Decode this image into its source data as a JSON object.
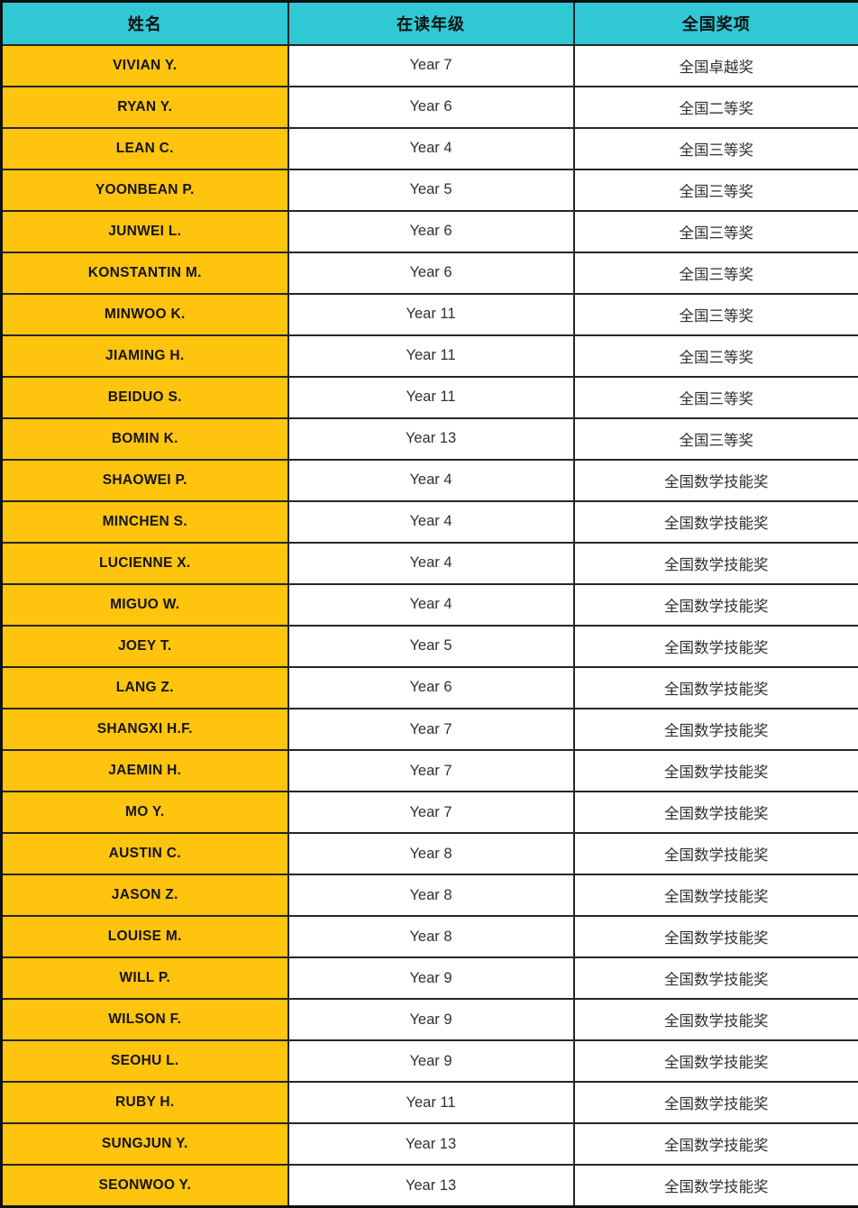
{
  "table": {
    "columns": [
      {
        "key": "name",
        "label": "姓名"
      },
      {
        "key": "grade",
        "label": "在读年级"
      },
      {
        "key": "award",
        "label": "全国奖项"
      }
    ],
    "rows": [
      {
        "name": "VIVIAN Y.",
        "grade": "Year 7",
        "award": "全国卓越奖"
      },
      {
        "name": "RYAN Y.",
        "grade": "Year 6",
        "award": "全国二等奖"
      },
      {
        "name": "LEAN C.",
        "grade": "Year 4",
        "award": "全国三等奖"
      },
      {
        "name": "YOONBEAN P.",
        "grade": "Year 5",
        "award": "全国三等奖"
      },
      {
        "name": "JUNWEI L.",
        "grade": "Year 6",
        "award": "全国三等奖"
      },
      {
        "name": "KONSTANTIN M.",
        "grade": "Year 6",
        "award": "全国三等奖"
      },
      {
        "name": "MINWOO K.",
        "grade": "Year 11",
        "award": "全国三等奖"
      },
      {
        "name": "JIAMING H.",
        "grade": "Year 11",
        "award": "全国三等奖"
      },
      {
        "name": "BEIDUO S.",
        "grade": "Year 11",
        "award": "全国三等奖"
      },
      {
        "name": "BOMIN K.",
        "grade": "Year 13",
        "award": "全国三等奖"
      },
      {
        "name": "SHAOWEI P.",
        "grade": "Year 4",
        "award": "全国数学技能奖"
      },
      {
        "name": "MINCHEN S.",
        "grade": "Year 4",
        "award": "全国数学技能奖"
      },
      {
        "name": "LUCIENNE X.",
        "grade": "Year 4",
        "award": "全国数学技能奖"
      },
      {
        "name": "MIGUO W.",
        "grade": "Year 4",
        "award": "全国数学技能奖"
      },
      {
        "name": "JOEY T.",
        "grade": "Year 5",
        "award": "全国数学技能奖"
      },
      {
        "name": "LANG Z.",
        "grade": "Year 6",
        "award": "全国数学技能奖"
      },
      {
        "name": "SHANGXI H.F.",
        "grade": "Year 7",
        "award": "全国数学技能奖"
      },
      {
        "name": "JAEMIN H.",
        "grade": "Year 7",
        "award": "全国数学技能奖"
      },
      {
        "name": "MO Y.",
        "grade": "Year 7",
        "award": "全国数学技能奖"
      },
      {
        "name": "AUSTIN C.",
        "grade": "Year 8",
        "award": "全国数学技能奖"
      },
      {
        "name": "JASON Z.",
        "grade": "Year 8",
        "award": "全国数学技能奖"
      },
      {
        "name": "LOUISE M.",
        "grade": "Year 8",
        "award": "全国数学技能奖"
      },
      {
        "name": "WILL P.",
        "grade": "Year 9",
        "award": "全国数学技能奖"
      },
      {
        "name": "WILSON F.",
        "grade": "Year 9",
        "award": "全国数学技能奖"
      },
      {
        "name": "SEOHU L.",
        "grade": "Year 9",
        "award": "全国数学技能奖"
      },
      {
        "name": "RUBY H.",
        "grade": "Year 11",
        "award": "全国数学技能奖"
      },
      {
        "name": "SUNGJUN Y.",
        "grade": "Year 13",
        "award": "全国数学技能奖"
      },
      {
        "name": "SEONWOO Y.",
        "grade": "Year 13",
        "award": "全国数学技能奖"
      }
    ],
    "colors": {
      "header_bg": "#2fc8d3",
      "header_text": "#111111",
      "name_bg": "#ffc40e",
      "name_text": "#141414",
      "cell_bg": "#ffffff",
      "cell_text": "#303030",
      "border": "#262626",
      "outer_border": "#0f0f0f"
    }
  }
}
